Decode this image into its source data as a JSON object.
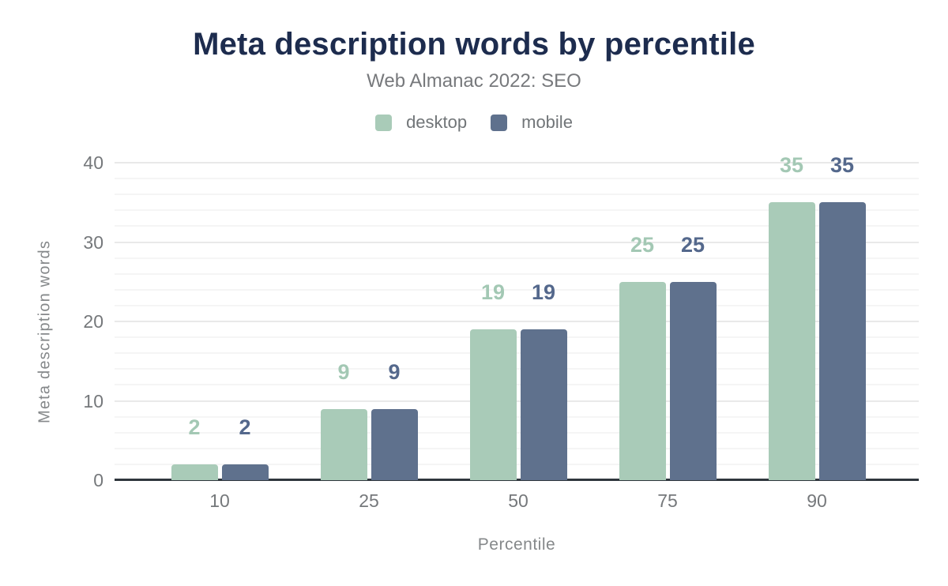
{
  "header": {
    "title": "Meta description words by percentile",
    "subtitle": "Web Almanac 2022: SEO"
  },
  "chart_data": {
    "type": "bar",
    "title": "Meta description words by percentile",
    "subtitle": "Web Almanac 2022: SEO",
    "categories": [
      "10",
      "25",
      "50",
      "75",
      "90"
    ],
    "series": [
      {
        "name": "desktop",
        "color": "#a9cbb8",
        "label_color": "#a3c8b4",
        "values": [
          2,
          9,
          19,
          25,
          35
        ]
      },
      {
        "name": "mobile",
        "color": "#5f718d",
        "label_color": "#54688c",
        "values": [
          2,
          9,
          19,
          25,
          35
        ]
      }
    ],
    "xlabel": "Percentile",
    "ylabel": "Meta description words",
    "ylim": [
      0,
      40
    ],
    "yticks": [
      0,
      10,
      20,
      30,
      40
    ],
    "minor_gridline_step": 2,
    "major_gridline_step": 10,
    "grid": "horizontal",
    "legend_position": "top",
    "bar_value_labels": true
  },
  "colors": {
    "background": "#ffffff",
    "title": "#1d2c4e",
    "subtitle": "#77797c",
    "legend_text": "#717578",
    "axis_text": "#75787b",
    "axis_title_text": "#85888a",
    "axis_line": "#2f363d",
    "major_gridline": "#e9e9e9",
    "minor_gridline": "#f5f5f5"
  }
}
